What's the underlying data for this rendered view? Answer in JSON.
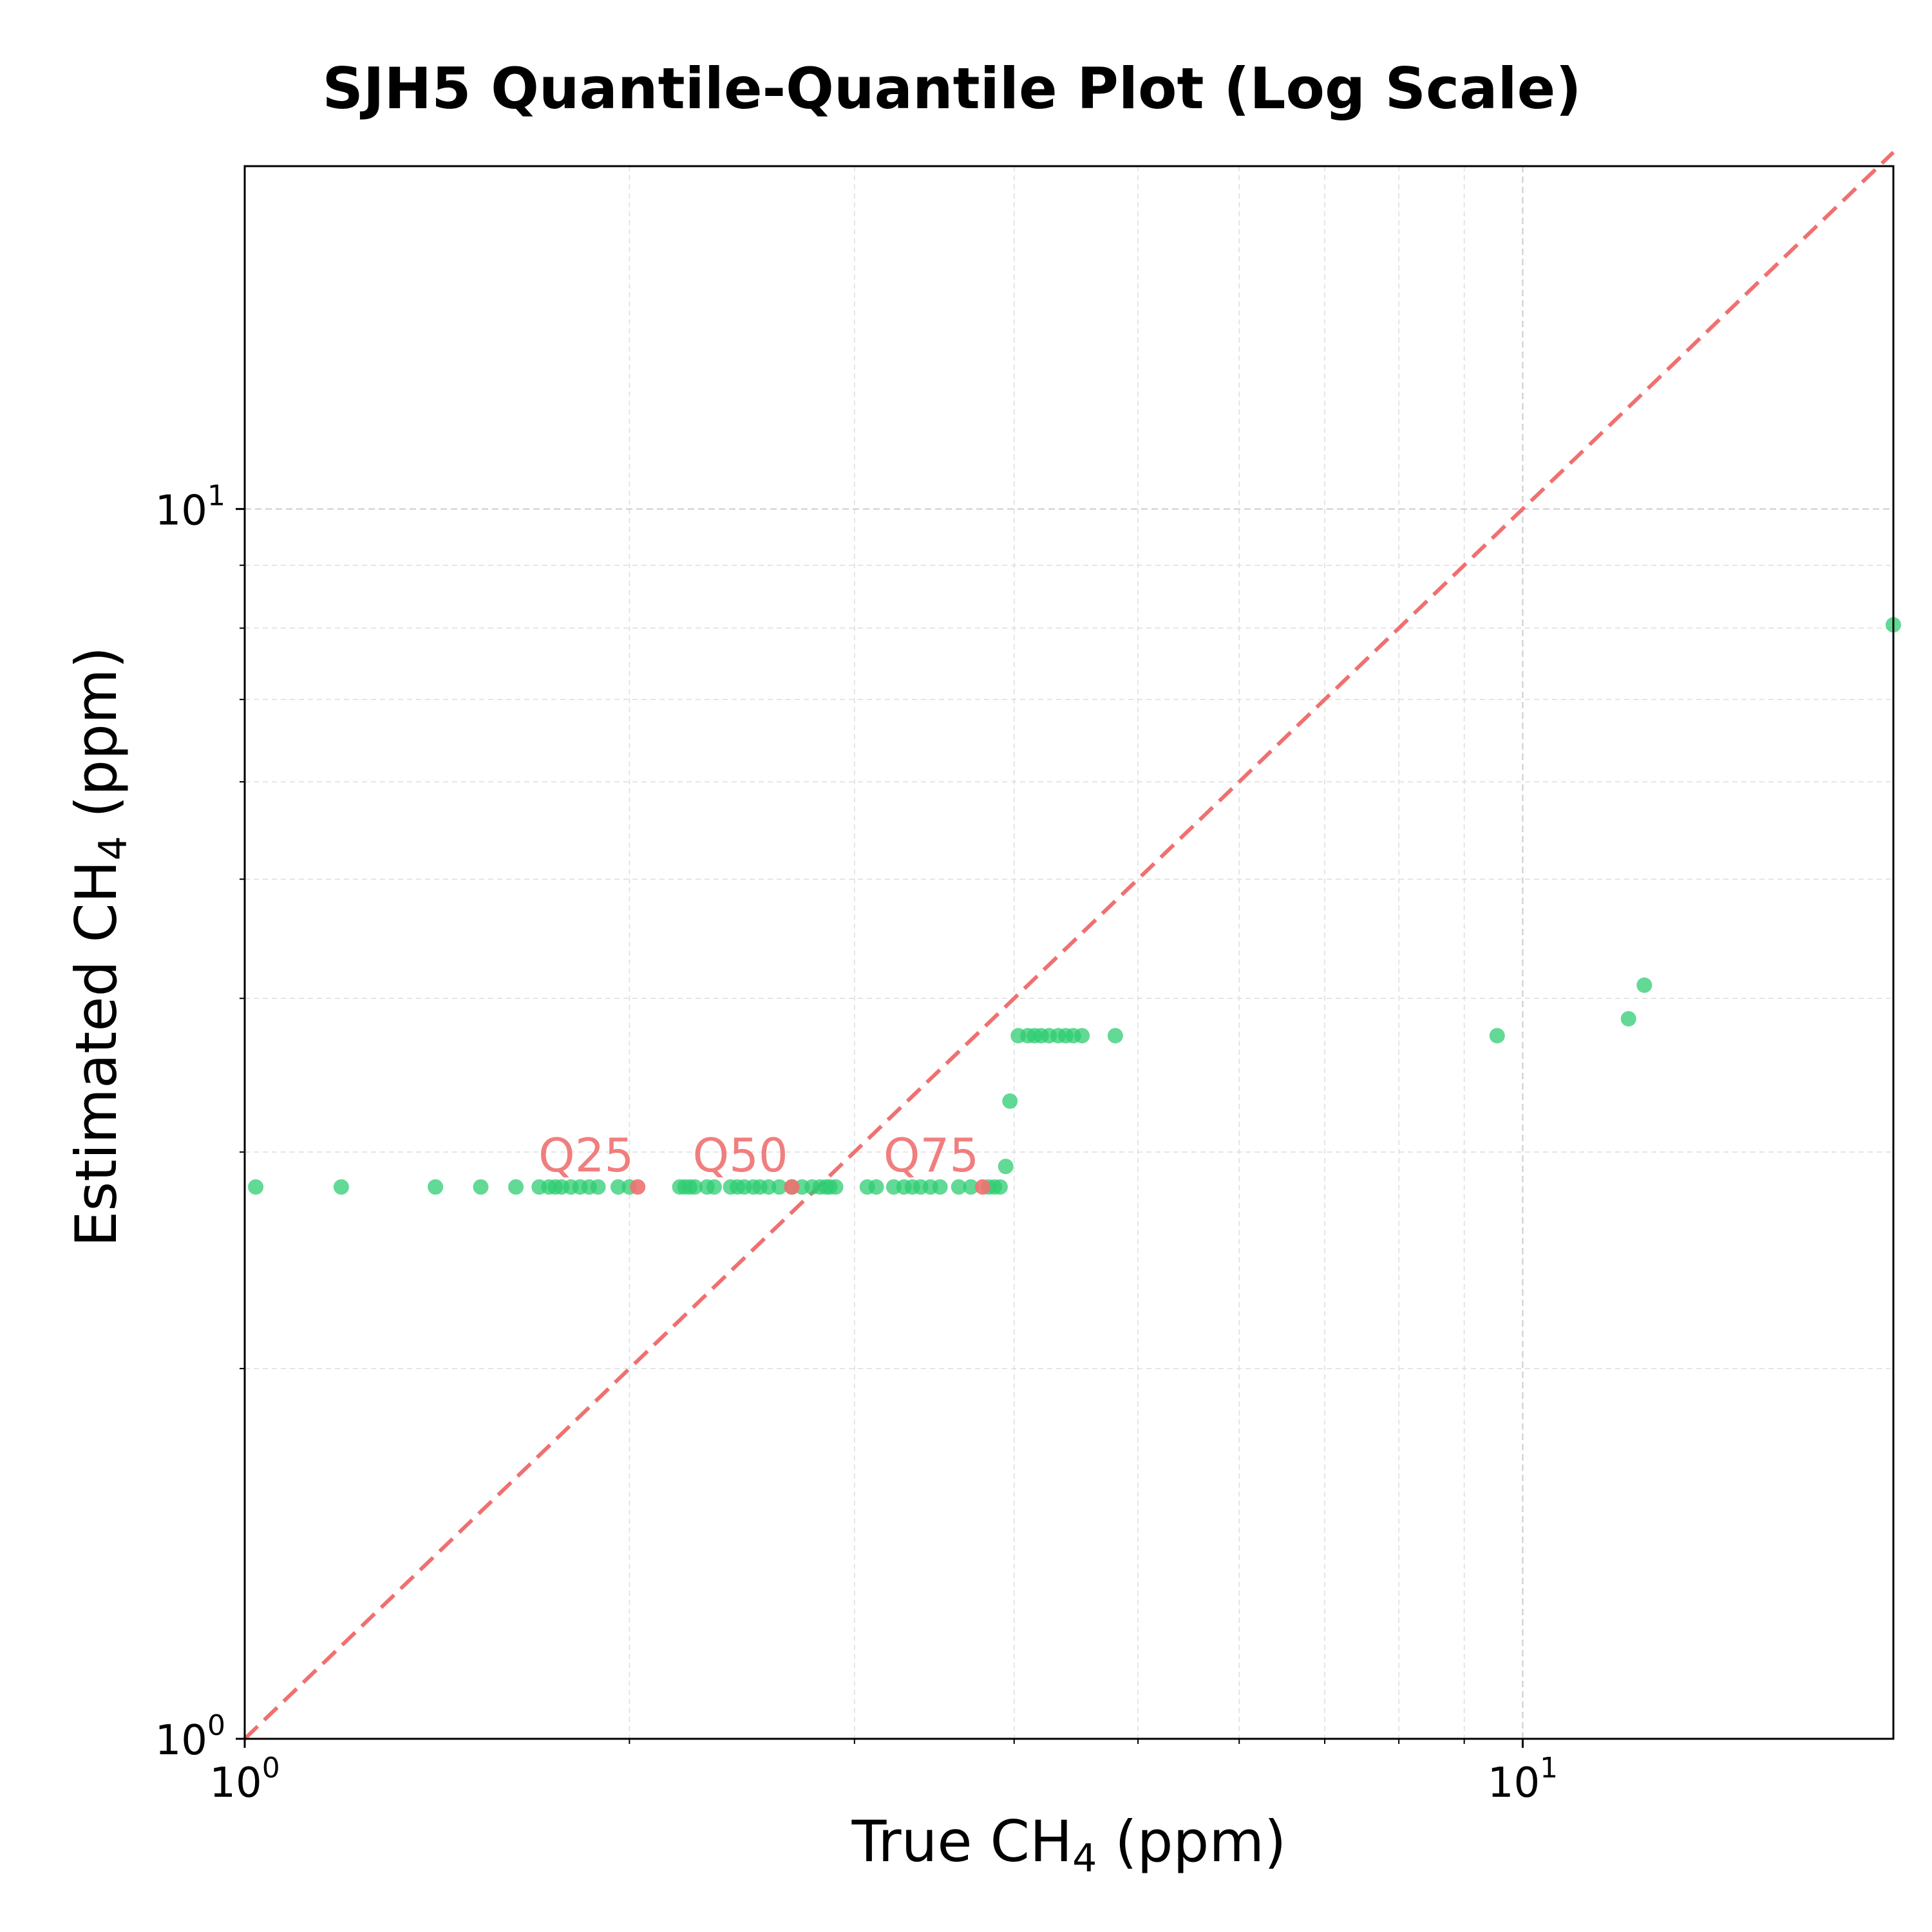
{
  "chart_data": {
    "type": "scatter",
    "title": "SJH5 Quantile-Quantile Plot (Log Scale)",
    "xlabel": {
      "main": "True CH",
      "sub": "4",
      "unit": " (ppm)"
    },
    "ylabel": {
      "main": "Estimated CH",
      "sub": "4",
      "unit": " (ppm)"
    },
    "x_scale": "log",
    "y_scale": "log",
    "xlim": [
      1.0,
      19.5
    ],
    "ylim": [
      1.0,
      19.0
    ],
    "x_ticks": [
      {
        "value": 1,
        "base": "10",
        "exp": "0"
      },
      {
        "value": 10,
        "base": "10",
        "exp": "1"
      }
    ],
    "y_ticks": [
      {
        "value": 1,
        "base": "10",
        "exp": "0"
      },
      {
        "value": 10,
        "base": "10",
        "exp": "1"
      }
    ],
    "grid": true,
    "colors": {
      "points": "#2ecc71",
      "quantile_points": "#f07070",
      "reference_line": "#f07070"
    },
    "reference_line": {
      "style": "dashed",
      "from": [
        1.0,
        1.0
      ],
      "to": [
        19.5,
        19.5
      ]
    },
    "series": [
      {
        "x": [
          1.02,
          1.19,
          1.41,
          1.53,
          1.63,
          1.7,
          1.73,
          1.75,
          1.77,
          1.8,
          1.83,
          1.86,
          1.89,
          1.96,
          2.0,
          2.19,
          2.21,
          2.23,
          2.25,
          2.3,
          2.33,
          2.4,
          2.43,
          2.46,
          2.5,
          2.53,
          2.57,
          2.62,
          2.68,
          2.73,
          2.78,
          2.82,
          2.85,
          2.87,
          2.9,
          3.07,
          3.12,
          3.22,
          3.28,
          3.33,
          3.38,
          3.44,
          3.5,
          3.62,
          3.7,
          3.82,
          3.86,
          3.9,
          3.94,
          3.97,
          4.03,
          4.1,
          4.15,
          4.2,
          4.26,
          4.33,
          4.39,
          4.45,
          4.52,
          4.8,
          9.55,
          12.1,
          12.45,
          19.5
        ],
        "y": [
          2.81,
          2.81,
          2.81,
          2.81,
          2.81,
          2.81,
          2.81,
          2.81,
          2.81,
          2.81,
          2.81,
          2.81,
          2.81,
          2.81,
          2.81,
          2.81,
          2.81,
          2.81,
          2.81,
          2.81,
          2.81,
          2.81,
          2.81,
          2.81,
          2.81,
          2.81,
          2.81,
          2.81,
          2.81,
          2.81,
          2.81,
          2.81,
          2.81,
          2.81,
          2.81,
          2.81,
          2.81,
          2.81,
          2.81,
          2.81,
          2.81,
          2.81,
          2.81,
          2.81,
          2.81,
          2.81,
          2.81,
          2.81,
          2.92,
          3.3,
          3.73,
          3.73,
          3.73,
          3.73,
          3.73,
          3.73,
          3.73,
          3.73,
          3.73,
          3.73,
          3.73,
          3.85,
          4.1,
          8.05
        ]
      }
    ],
    "quantiles": [
      {
        "label": "Q25",
        "x": 2.03,
        "y": 2.81
      },
      {
        "label": "Q50",
        "x": 2.68,
        "y": 2.81
      },
      {
        "label": "Q75",
        "x": 3.78,
        "y": 2.81
      }
    ]
  }
}
